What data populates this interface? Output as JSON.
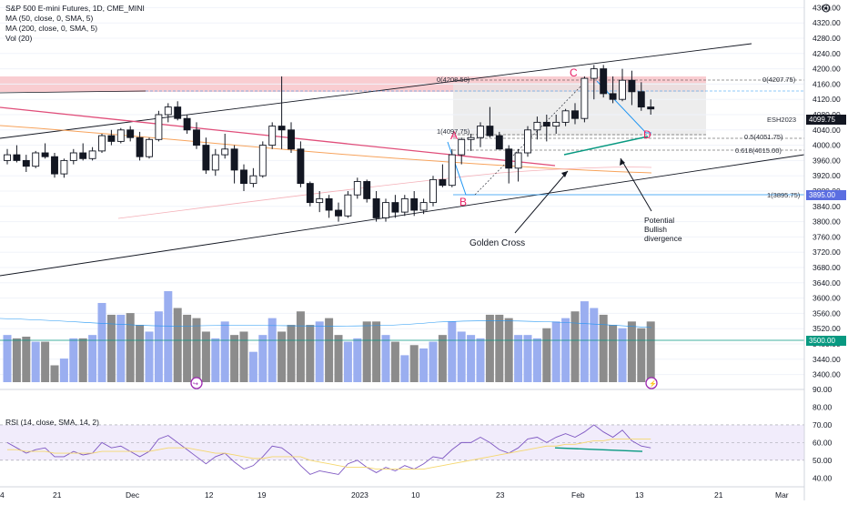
{
  "legend": {
    "title": "S&P 500 E-mini Futures, 1D, CME_MINI",
    "ma50": "MA (50, close, 0, SMA, 5)",
    "ma200": "MA (200, close, 0, SMA, 5)",
    "vol": "Vol (20)",
    "rsi": "RSI (14, close, SMA, 14, 2)"
  },
  "annotations": {
    "golden_cross": "Golden Cross",
    "divergence_1": "Potential",
    "divergence_2": "Bullish",
    "divergence_3": "divergence",
    "point_a": "A",
    "point_b": "B",
    "point_c": "C",
    "point_d": "D",
    "fib_top": "0(4208.50)",
    "fib_top_right": "0(4207.75)",
    "fib_one": "1(4097.75)",
    "fib_half": "0.5(4051.75)",
    "fib_618": "0.618(4015.00)",
    "fib_bottom": "1(3895.75)",
    "symbol_tag": "ESH2023",
    "last_price_tag": "4099.75",
    "level_tag": "3895.00",
    "vol_tag": "3500.00"
  },
  "colors": {
    "up_candle": "#ffffff",
    "down_candle": "#131722",
    "volume_up": "#9aaef0",
    "volume_down": "#8c8c8c",
    "resistance_zone": "#f8c8cc",
    "ma50": "#f7a35c",
    "ma200": "#e04e7a",
    "channel": "#131722",
    "accent_pink": "#e91e63",
    "teal": "#089981",
    "blue": "#2196f3",
    "rsi_line": "#7e57c2",
    "rsi_ma": "#f5d76e"
  },
  "chart_data": [
    {
      "type": "candlestick",
      "title": "S&P 500 E-mini Futures, 1D, CME_MINI",
      "ylim": [
        3380,
        4380
      ],
      "y_ticks": [
        "4360.00",
        "4320.00",
        "4280.00",
        "4240.00",
        "4200.00",
        "4160.00",
        "4120.00",
        "4080.00",
        "4040.00",
        "4000.00",
        "3960.00",
        "3920.00",
        "3880.00",
        "3840.00",
        "3800.00",
        "3760.00",
        "3720.00",
        "3680.00",
        "3640.00",
        "3600.00",
        "3560.00",
        "3520.00",
        "3480.00",
        "3440.00",
        "3400.00"
      ],
      "x_ticks": [
        "4",
        "21",
        "Dec",
        "12",
        "19",
        "2023",
        "10",
        "23",
        "Feb",
        "13",
        "21",
        "Mar"
      ],
      "ohlc": [
        [
          3960,
          3990,
          3950,
          3975
        ],
        [
          3975,
          4000,
          3955,
          3960
        ],
        [
          3960,
          3975,
          3930,
          3945
        ],
        [
          3945,
          3985,
          3940,
          3980
        ],
        [
          3980,
          4005,
          3965,
          3970
        ],
        [
          3970,
          3980,
          3915,
          3925
        ],
        [
          3925,
          3965,
          3915,
          3960
        ],
        [
          3960,
          3990,
          3950,
          3980
        ],
        [
          3980,
          4005,
          3960,
          3965
        ],
        [
          3965,
          3995,
          3960,
          3985
        ],
        [
          3985,
          4030,
          3980,
          4025
        ],
        [
          4025,
          4040,
          4000,
          4010
        ],
        [
          4010,
          4045,
          4005,
          4040
        ],
        [
          4040,
          4050,
          4010,
          4020
        ],
        [
          4020,
          4035,
          3960,
          3970
        ],
        [
          3970,
          4020,
          3965,
          4015
        ],
        [
          4015,
          4090,
          4010,
          4080
        ],
        [
          4080,
          4110,
          4060,
          4100
        ],
        [
          4100,
          4115,
          4065,
          4070
        ],
        [
          4070,
          4080,
          4030,
          4040
        ],
        [
          4040,
          4060,
          3990,
          4000
        ],
        [
          4000,
          4020,
          3925,
          3935
        ],
        [
          3935,
          3990,
          3920,
          3975
        ],
        [
          3975,
          4030,
          3965,
          3990
        ],
        [
          3990,
          4000,
          3900,
          3935
        ],
        [
          3935,
          3950,
          3880,
          3900
        ],
        [
          3900,
          3940,
          3890,
          3920
        ],
        [
          3920,
          4010,
          3915,
          4000
        ],
        [
          4000,
          4060,
          3990,
          4050
        ],
        [
          4050,
          4180,
          3990,
          4040
        ],
        [
          4040,
          4060,
          3980,
          3990
        ],
        [
          3990,
          4010,
          3890,
          3900
        ],
        [
          3900,
          3905,
          3840,
          3850
        ],
        [
          3850,
          3880,
          3825,
          3860
        ],
        [
          3860,
          3870,
          3810,
          3830
        ],
        [
          3830,
          3850,
          3800,
          3815
        ],
        [
          3815,
          3880,
          3810,
          3870
        ],
        [
          3870,
          3915,
          3860,
          3905
        ],
        [
          3905,
          3910,
          3850,
          3860
        ],
        [
          3860,
          3880,
          3800,
          3810
        ],
        [
          3810,
          3860,
          3800,
          3850
        ],
        [
          3850,
          3870,
          3810,
          3825
        ],
        [
          3825,
          3870,
          3815,
          3860
        ],
        [
          3860,
          3880,
          3815,
          3830
        ],
        [
          3830,
          3860,
          3820,
          3850
        ],
        [
          3850,
          3920,
          3840,
          3910
        ],
        [
          3910,
          3950,
          3890,
          3895
        ],
        [
          3895,
          3990,
          3890,
          3975
        ],
        [
          3975,
          4020,
          3950,
          4015
        ],
        [
          4015,
          4030,
          3985,
          4020
        ],
        [
          4020,
          4060,
          3995,
          4050
        ],
        [
          4050,
          4100,
          4020,
          4025
        ],
        [
          4025,
          4035,
          3990,
          3990
        ],
        [
          3990,
          4000,
          3900,
          3940
        ],
        [
          3940,
          3990,
          3905,
          3980
        ],
        [
          3980,
          4050,
          3970,
          4040
        ],
        [
          4040,
          4075,
          4015,
          4060
        ],
        [
          4060,
          4080,
          4010,
          4050
        ],
        [
          4050,
          4080,
          4030,
          4060
        ],
        [
          4060,
          4095,
          4050,
          4090
        ],
        [
          4090,
          4110,
          4055,
          4070
        ],
        [
          4070,
          4180,
          4060,
          4175
        ],
        [
          4175,
          4210,
          4120,
          4200
        ],
        [
          4200,
          4210,
          4125,
          4135
        ],
        [
          4135,
          4180,
          4110,
          4120
        ],
        [
          4120,
          4200,
          4115,
          4170
        ],
        [
          4170,
          4195,
          4105,
          4140
        ],
        [
          4140,
          4165,
          4090,
          4100
        ],
        [
          4100,
          4120,
          4080,
          4095
        ]
      ],
      "volume_ylim": [
        3380,
        3650
      ],
      "volume": [
        3520,
        3510,
        3515,
        3500,
        3500,
        3430,
        3450,
        3510,
        3510,
        3520,
        3615,
        3580,
        3580,
        3585,
        3550,
        3530,
        3590,
        3650,
        3600,
        3580,
        3570,
        3530,
        3510,
        3560,
        3520,
        3530,
        3470,
        3520,
        3570,
        3530,
        3550,
        3590,
        3550,
        3560,
        3570,
        3520,
        3500,
        3510,
        3560,
        3560,
        3520,
        3500,
        3460,
        3490,
        3480,
        3500,
        3520,
        3560,
        3530,
        3520,
        3510,
        3580,
        3580,
        3570,
        3520,
        3520,
        3510,
        3540,
        3560,
        3570,
        3590,
        3620,
        3600,
        3580,
        3550,
        3540,
        3560,
        3540,
        3560
      ],
      "rsi_ylim": [
        35,
        90
      ],
      "rsi_ticks": [
        "90.00",
        "80.00",
        "70.00",
        "60.00",
        "50.00",
        "40.00"
      ],
      "rsi": [
        60,
        57,
        54,
        56,
        57,
        52,
        52,
        55,
        53,
        54,
        60,
        57,
        58,
        55,
        52,
        55,
        62,
        64,
        60,
        56,
        52,
        48,
        52,
        54,
        49,
        45,
        47,
        52,
        58,
        57,
        53,
        47,
        42,
        44,
        43,
        42,
        48,
        50,
        46,
        43,
        46,
        44,
        47,
        45,
        48,
        52,
        51,
        56,
        60,
        60,
        63,
        60,
        56,
        54,
        57,
        62,
        63,
        60,
        63,
        65,
        63,
        66,
        70,
        66,
        63,
        67,
        61,
        58,
        57
      ],
      "rsi_ma": [
        56,
        56,
        55,
        55,
        55,
        54,
        54,
        54,
        54,
        54,
        55,
        55,
        55,
        55,
        55,
        55,
        56,
        57,
        57,
        57,
        56,
        55,
        54,
        54,
        53,
        52,
        51,
        51,
        52,
        52,
        52,
        52,
        50,
        49,
        48,
        47,
        46,
        46,
        46,
        45,
        45,
        45,
        45,
        45,
        45,
        46,
        47,
        48,
        49,
        50,
        51,
        52,
        53,
        54,
        55,
        56,
        57,
        58,
        58,
        59,
        59,
        60,
        61,
        61,
        62,
        62,
        62,
        62,
        62
      ]
    }
  ]
}
